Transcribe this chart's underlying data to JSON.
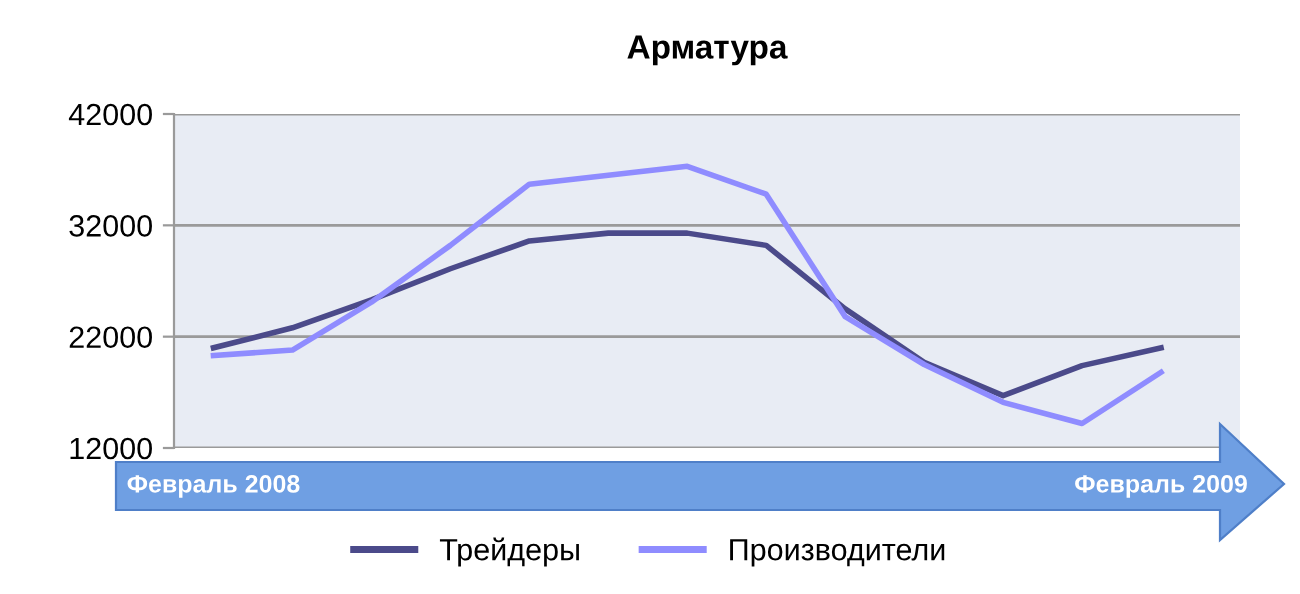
{
  "chart_data": {
    "type": "line",
    "title": "Арматура",
    "categories": [
      "Февраль 2008",
      null,
      null,
      null,
      null,
      null,
      null,
      null,
      null,
      null,
      null,
      null,
      "Февраль 2009"
    ],
    "series": [
      {
        "name": "Трейдеры",
        "color": "#4b4a8a",
        "values": [
          21000,
          22800,
          25300,
          28100,
          30600,
          31300,
          31300,
          30200,
          24500,
          19700,
          16700,
          19400,
          21000
        ]
      },
      {
        "name": "Производители",
        "color": "#8f8cff",
        "values": [
          20300,
          20800,
          25100,
          30200,
          35700,
          36500,
          37300,
          34800,
          23800,
          19500,
          16100,
          14200,
          18800
        ]
      }
    ],
    "ylim": [
      12000,
      42000
    ],
    "yticks": [
      12000,
      22000,
      32000,
      42000
    ],
    "grid": "y",
    "legend": "bottom",
    "marker": "none",
    "line_style": "solid"
  }
}
